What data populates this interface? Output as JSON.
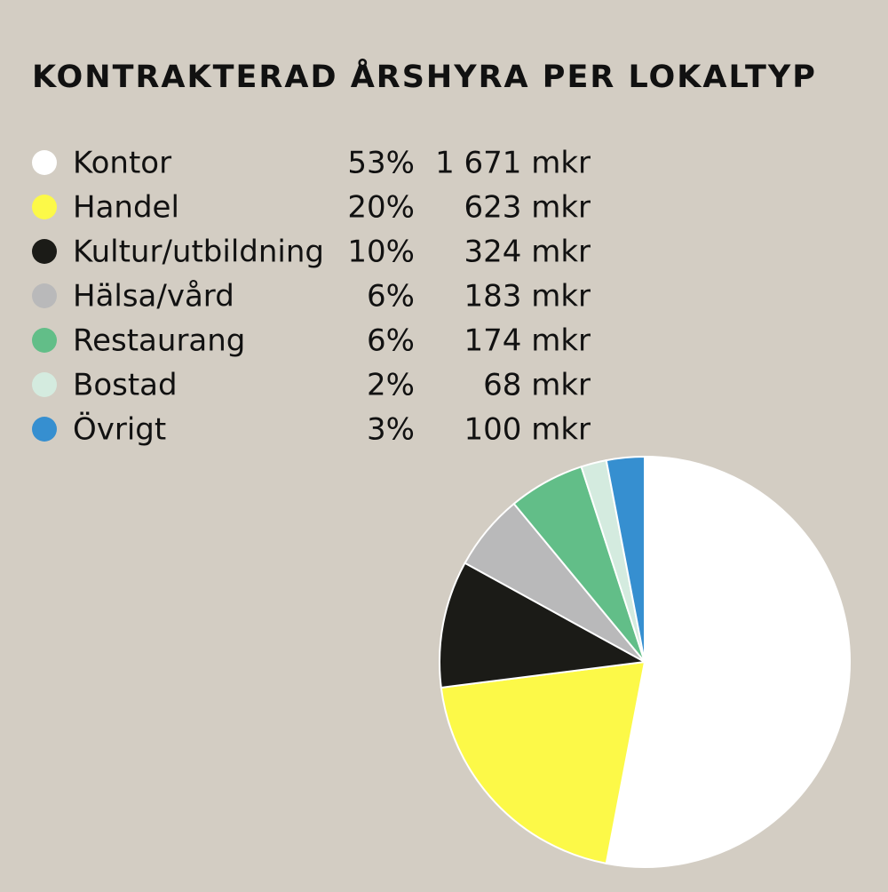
{
  "chart_data": {
    "type": "pie",
    "title": "KONTRAKTERAD ÅRSHYRA PER LOKALTYP",
    "categories": [
      "Kontor",
      "Handel",
      "Kultur/utbildning",
      "Hälsa/vård",
      "Restaurang",
      "Bostad",
      "Övrigt"
    ],
    "values": [
      53,
      20,
      10,
      6,
      6,
      2,
      3
    ],
    "value_labels": [
      "53%",
      "20%",
      "10%",
      "6%",
      "6%",
      "2%",
      "3%"
    ],
    "amount_labels": [
      "1 671 mkr",
      "623 mkr",
      "324 mkr",
      "183 mkr",
      "174 mkr",
      "68 mkr",
      "100 mkr"
    ],
    "colors": [
      "#ffffff",
      "#fcf948",
      "#1b1b17",
      "#b9b9ba",
      "#62be88",
      "#d4ebdf",
      "#368fd0"
    ]
  }
}
